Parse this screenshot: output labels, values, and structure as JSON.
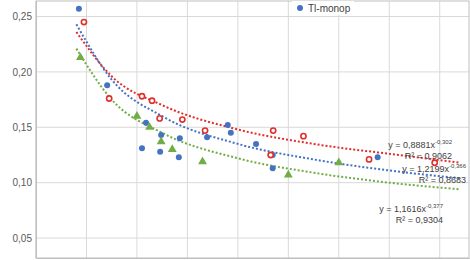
{
  "chart_data": {
    "type": "scatter",
    "xlim": [
      0,
      858
    ],
    "xticks": [
      0,
      100,
      200,
      300,
      400,
      500,
      600,
      700,
      800
    ],
    "ylim": [
      0.032,
      0.264
    ],
    "yticks": [
      {
        "value": 0.05,
        "label": "0,05"
      },
      {
        "value": 0.1,
        "label": "0,10"
      },
      {
        "value": 0.15,
        "label": "0,15"
      },
      {
        "value": 0.2,
        "label": "0,20"
      },
      {
        "value": 0.25,
        "label": "0,25"
      }
    ],
    "grid": true,
    "tick_labels": "y",
    "legend": "top-right",
    "series": [
      {
        "name": "Tl-monop",
        "type": "scatter",
        "marker": "circle",
        "color": "#4472c4",
        "x": [
          85,
          141,
          210,
          218,
          248,
          246,
          283,
          285,
          339,
          380,
          386,
          436,
          469,
          469,
          677
        ],
        "values": [
          0.257,
          0.188,
          0.131,
          0.154,
          0.143,
          0.128,
          0.123,
          0.14,
          0.141,
          0.152,
          0.145,
          0.135,
          0.113,
          0.125,
          0.123
        ]
      },
      {
        "type": "scatter",
        "marker": "circle-open",
        "color": "#e0302c",
        "x": [
          95,
          145,
          210,
          230,
          245,
          290,
          335,
          465,
          470,
          530,
          660,
          790
        ],
        "values": [
          0.245,
          0.176,
          0.178,
          0.174,
          0.158,
          0.157,
          0.147,
          0.125,
          0.147,
          0.142,
          0.121,
          0.118
        ]
      },
      {
        "type": "scatter",
        "marker": "triangle",
        "color": "#70ad47",
        "x": [
          88,
          200,
          225,
          248,
          270,
          330,
          500,
          600
        ],
        "values": [
          0.213,
          0.16,
          0.15,
          0.137,
          0.13,
          0.119,
          0.107,
          0.118
        ]
      },
      {
        "type": "line",
        "line_style": "dotted",
        "color": "#e0302c",
        "equation": "y = 0,8881x",
        "exponent": "-0,302",
        "r2": "R² = 0,9062",
        "x": [
          80,
          150,
          250,
          400,
          550,
          700,
          840
        ],
        "values": [
          0.236,
          0.196,
          0.17,
          0.148,
          0.135,
          0.126,
          0.118
        ]
      },
      {
        "type": "line",
        "line_style": "dotted",
        "color": "#4472c4",
        "equation": "y = 1,2199x",
        "exponent": "-0,366",
        "r2": "R² = 0,8683",
        "x": [
          80,
          150,
          250,
          400,
          550,
          700,
          840
        ],
        "values": [
          0.243,
          0.193,
          0.16,
          0.135,
          0.121,
          0.111,
          0.104
        ]
      },
      {
        "type": "line",
        "line_style": "dotted",
        "color": "#70ad47",
        "equation": "y = 1,1616x",
        "exponent": "-0,377",
        "r2": "R² = 0,9304",
        "x": [
          80,
          150,
          250,
          400,
          550,
          700,
          840
        ],
        "values": [
          0.221,
          0.175,
          0.145,
          0.122,
          0.109,
          0.1,
          0.094
        ]
      }
    ]
  }
}
